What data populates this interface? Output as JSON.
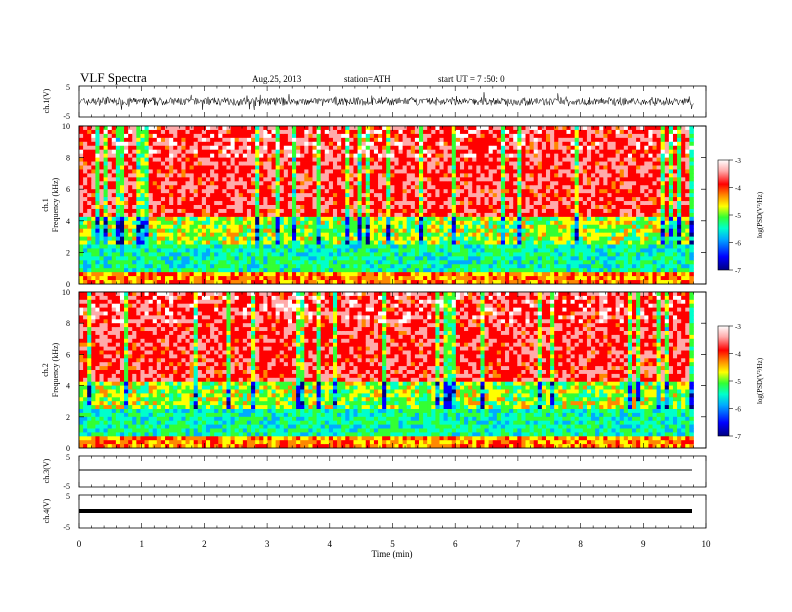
{
  "header": {
    "title": "VLF  Spectra",
    "date": "Aug.25, 2013",
    "station": "station=ATH",
    "start": "start  UT  =   7  :50: 0"
  },
  "panels": {
    "ch1v_label": "ch.1(V)",
    "ch1_label": "ch.1",
    "ch2_label": "ch.2",
    "freq_label": "Frequency  (kHz)",
    "ch3v_label": "ch.3(V)",
    "ch4v_label": "ch.4(V)",
    "xlabel": "Time  (min)",
    "colorbar_label": "log(PSD(V²/Hz)"
  },
  "colors": {
    "colormap": [
      "#000080",
      "#0000ff",
      "#00aaff",
      "#00ffcc",
      "#33ff33",
      "#ffff00",
      "#ff8800",
      "#ff0000",
      "#ffaaaa",
      "#ffffff"
    ]
  },
  "chart_data": [
    {
      "type": "line",
      "name": "ch.1 waveform",
      "ylabel": "ch.1(V)",
      "ylim": [
        -5,
        5
      ],
      "yticks": [
        "5",
        "-5"
      ],
      "xlim": [
        0,
        10
      ],
      "trace": "noisy, approx ±1.5 V"
    },
    {
      "type": "heatmap",
      "name": "ch.1 spectrogram",
      "ylabel": "Frequency  (kHz)",
      "ylim": [
        0,
        10
      ],
      "yticks": [
        "0",
        "2",
        "4",
        "6",
        "8",
        "10"
      ],
      "xlim": [
        0,
        9.8
      ],
      "colorbar": {
        "label": "log(PSD(V²/Hz)",
        "range": [
          -7,
          -3
        ],
        "ticks": [
          "-3",
          "-4",
          "-5",
          "-6",
          "-7"
        ]
      },
      "description_levels": {
        "below_4kHz": -5.5,
        "above_4kHz": -3.8
      }
    },
    {
      "type": "heatmap",
      "name": "ch.2 spectrogram",
      "ylabel": "Frequency  (kHz)",
      "ylim": [
        0,
        10
      ],
      "yticks": [
        "0",
        "2",
        "4",
        "6",
        "8",
        "10"
      ],
      "xlim": [
        0,
        9.8
      ],
      "colorbar": {
        "label": "log(PSD(V²/Hz)",
        "range": [
          -7,
          -3
        ],
        "ticks": [
          "-3",
          "-4",
          "-5",
          "-6",
          "-7"
        ]
      }
    },
    {
      "type": "line",
      "name": "ch.3 waveform",
      "ylabel": "ch.3(V)",
      "ylim": [
        -5,
        5
      ],
      "yticks": [
        "5",
        "-5"
      ],
      "level": 0
    },
    {
      "type": "line",
      "name": "ch.4 waveform",
      "ylabel": "ch.4(V)",
      "ylim": [
        -5,
        5
      ],
      "yticks": [
        "5",
        "-5"
      ],
      "level": 0
    },
    {
      "type": "axis",
      "xlabel": "Time  (min)",
      "xlim": [
        0,
        10
      ],
      "xticks": [
        "0",
        "1",
        "2",
        "3",
        "4",
        "5",
        "6",
        "7",
        "8",
        "9",
        "10"
      ]
    }
  ]
}
